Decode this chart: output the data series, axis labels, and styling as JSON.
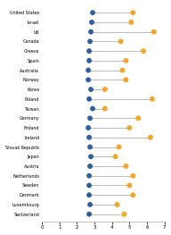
{
  "countries": [
    "United States",
    "Israel",
    "UK",
    "Canada",
    "Greece",
    "Spain",
    "Australia",
    "Norway",
    "Korea",
    "Poland",
    "Taiwan",
    "Germany",
    "Finland",
    "Ireland",
    "Slovak Republic",
    "Japan",
    "Austria",
    "Netherlands",
    "Sweden",
    "Denmark",
    "Luxembourg",
    "Switzerland"
  ],
  "blue_values": [
    2.9,
    2.85,
    2.8,
    2.75,
    2.7,
    2.7,
    2.65,
    2.65,
    2.8,
    2.7,
    2.9,
    2.75,
    2.65,
    2.7,
    2.75,
    2.8,
    2.75,
    2.7,
    2.7,
    2.7,
    2.75,
    2.7
  ],
  "orange_values": [
    5.2,
    5.1,
    6.4,
    4.5,
    5.8,
    4.8,
    4.6,
    4.8,
    3.6,
    6.3,
    3.6,
    5.5,
    5.0,
    6.2,
    4.4,
    4.2,
    4.8,
    5.2,
    5.0,
    5.2,
    4.3,
    4.7
  ],
  "blue_color": "#2E5FA3",
  "orange_color": "#F5A623",
  "line_color": "#BBBBBB",
  "background_color": "#FFFFFF",
  "xlim": [
    0,
    7
  ],
  "xticks": [
    0,
    1,
    2,
    3,
    4,
    5,
    6,
    7
  ],
  "dot_size": 18,
  "label_fontsize": 3.5,
  "tick_fontsize": 4.0
}
